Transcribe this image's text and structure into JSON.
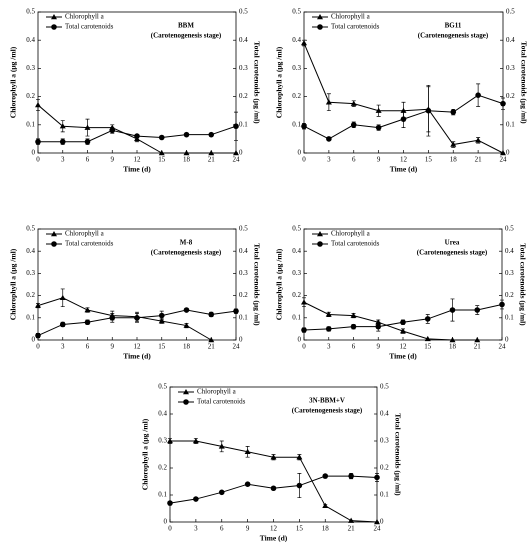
{
  "chart_data": [
    {
      "type": "line",
      "title": "BBM",
      "subtitle": "(Carotenogenesis stage)",
      "x_label": "Time (d)",
      "y_label": "Chlorophyll a  (μg /ml)",
      "y2_label": "Total carotenoids  (μg /ml)",
      "x": [
        0,
        3,
        6,
        9,
        12,
        15,
        18,
        21,
        24
      ],
      "xlim": [
        0,
        24
      ],
      "xticks": [
        0,
        3,
        6,
        9,
        12,
        15,
        18,
        21,
        24
      ],
      "ylim": [
        0,
        0.5
      ],
      "yticks": [
        0,
        0.1,
        0.2,
        0.3,
        0.4,
        0.5
      ],
      "y2lim": [
        0,
        0.5
      ],
      "y2ticks": [
        0,
        0.1,
        0.2,
        0.3,
        0.4,
        0.5
      ],
      "series": [
        {
          "name": "Chlorophyll a",
          "color": "#000000",
          "marker": "triangle",
          "values": [
            0.17,
            0.095,
            0.09,
            0.09,
            0.05,
            0.0,
            0.0,
            0.0,
            0.0
          ],
          "errors": [
            0.02,
            0.02,
            0.03,
            0.01,
            0.01,
            0.0,
            0.0,
            0.0,
            0.0
          ]
        },
        {
          "name": "Total carotenoids",
          "color": "#000000",
          "marker": "circle",
          "axis": "y2",
          "values": [
            0.04,
            0.04,
            0.04,
            0.08,
            0.06,
            0.055,
            0.065,
            0.065,
            0.095
          ],
          "errors": [
            0.01,
            0.01,
            0.01,
            0.01,
            0.005,
            0.005,
            0.005,
            0.005,
            0.05
          ]
        }
      ]
    },
    {
      "type": "line",
      "title": "BG11",
      "subtitle": "(Carotenogenesis stage)",
      "x_label": "Time (d)",
      "y_label": "Chlorophyll a  (μg /ml)",
      "y2_label": "Total carotenoids  (μg /ml)",
      "x": [
        0,
        3,
        6,
        9,
        12,
        15,
        18,
        21,
        24
      ],
      "xlim": [
        0,
        24
      ],
      "xticks": [
        0,
        3,
        6,
        9,
        12,
        15,
        18,
        21,
        24
      ],
      "ylim": [
        0,
        0.5
      ],
      "yticks": [
        0,
        0.1,
        0.2,
        0.3,
        0.4,
        0.5
      ],
      "y2lim": [
        0,
        0.5
      ],
      "y2ticks": [
        0,
        0.1,
        0.2,
        0.3,
        0.4,
        0.5
      ],
      "series": [
        {
          "name": "Chlorophyll a",
          "color": "#000000",
          "marker": "triangle",
          "values": [
            0.39,
            0.18,
            0.175,
            0.15,
            0.15,
            0.155,
            0.03,
            0.045,
            0.0
          ],
          "errors": [
            0.01,
            0.03,
            0.01,
            0.02,
            0.03,
            0.08,
            0.01,
            0.01,
            0.0
          ]
        },
        {
          "name": "Total carotenoids",
          "color": "#000000",
          "marker": "circle",
          "axis": "y2",
          "values": [
            0.095,
            0.05,
            0.1,
            0.09,
            0.12,
            0.15,
            0.145,
            0.205,
            0.175
          ],
          "errors": [
            0.01,
            0.005,
            0.01,
            0.01,
            0.03,
            0.09,
            0.01,
            0.04,
            0.02
          ]
        }
      ]
    },
    {
      "type": "line",
      "title": "M-8",
      "subtitle": "(Carotenogenesis stage)",
      "x_label": "Time (d)",
      "y_label": "Chlorophyll a  (μg /ml)",
      "y2_label": "Total carotenoids  (μg /ml)",
      "x": [
        0,
        3,
        6,
        9,
        12,
        15,
        18,
        21,
        24
      ],
      "xlim": [
        0,
        24
      ],
      "xticks": [
        0,
        3,
        6,
        9,
        12,
        15,
        18,
        21,
        24
      ],
      "ylim": [
        0,
        0.5
      ],
      "yticks": [
        0,
        0.1,
        0.2,
        0.3,
        0.4,
        0.5
      ],
      "y2lim": [
        0,
        0.5
      ],
      "y2ticks": [
        0,
        0.1,
        0.2,
        0.3,
        0.4,
        0.5
      ],
      "series": [
        {
          "name": "Chlorophyll a",
          "color": "#000000",
          "marker": "triangle",
          "values": [
            0.155,
            0.19,
            0.135,
            0.11,
            0.105,
            0.085,
            0.065,
            0.0,
            null
          ],
          "errors": [
            0.01,
            0.04,
            0.01,
            0.02,
            0.02,
            0.01,
            0.01,
            0.0,
            null
          ]
        },
        {
          "name": "Total carotenoids",
          "color": "#000000",
          "marker": "circle",
          "axis": "y2",
          "values": [
            0.02,
            0.07,
            0.08,
            0.1,
            0.1,
            0.11,
            0.135,
            0.115,
            0.13
          ],
          "errors": [
            0.01,
            0.01,
            0.01,
            0.02,
            0.02,
            0.02,
            0.005,
            0.01,
            0.01
          ]
        }
      ]
    },
    {
      "type": "line",
      "title": "Urea",
      "subtitle": "(Carotenogenesis stage)",
      "x_label": "Time (d)",
      "y_label": "Chlorophyll a  (μg /ml)",
      "y2_label": "Total carotenoids  (μg /ml)",
      "x": [
        0,
        3,
        6,
        9,
        12,
        15,
        18,
        21,
        24
      ],
      "xlim": [
        0,
        24
      ],
      "xticks": [
        0,
        3,
        6,
        9,
        12,
        15,
        18,
        21,
        24
      ],
      "ylim": [
        0,
        0.5
      ],
      "yticks": [
        0,
        0.1,
        0.2,
        0.3,
        0.4,
        0.5
      ],
      "y2lim": [
        0,
        0.5
      ],
      "y2ticks": [
        0,
        0.1,
        0.2,
        0.3,
        0.4,
        0.5
      ],
      "series": [
        {
          "name": "Chlorophyll a",
          "color": "#000000",
          "marker": "triangle",
          "values": [
            0.17,
            0.115,
            0.11,
            0.08,
            0.04,
            0.005,
            0.0,
            0.0,
            null
          ],
          "errors": [
            0.02,
            0.01,
            0.01,
            0.01,
            0.01,
            0.0,
            0.0,
            0.0,
            null
          ]
        },
        {
          "name": "Total carotenoids",
          "color": "#000000",
          "marker": "circle",
          "axis": "y2",
          "values": [
            0.045,
            0.05,
            0.06,
            0.06,
            0.08,
            0.095,
            0.135,
            0.135,
            0.16
          ],
          "errors": [
            0.01,
            0.01,
            0.01,
            0.02,
            0.01,
            0.02,
            0.05,
            0.02,
            0.02
          ]
        }
      ]
    },
    {
      "type": "line",
      "title": "3N-BBM+V",
      "subtitle": "(Carotenogenesis stage)",
      "x_label": "Time (d)",
      "y_label": "Chlorophyll a  (μg /ml)",
      "y2_label": "Total carotenoids  (μg /ml)",
      "x": [
        0,
        3,
        6,
        9,
        12,
        15,
        18,
        21,
        24
      ],
      "xlim": [
        0,
        24
      ],
      "xticks": [
        0,
        3,
        6,
        9,
        12,
        15,
        18,
        21,
        24
      ],
      "ylim": [
        0,
        0.5
      ],
      "yticks": [
        0,
        0.1,
        0.2,
        0.3,
        0.4,
        0.5
      ],
      "y2lim": [
        0,
        0.5
      ],
      "y2ticks": [
        0,
        0.1,
        0.2,
        0.3,
        0.4,
        0.5
      ],
      "series": [
        {
          "name": "Chlorophyll a",
          "color": "#000000",
          "marker": "triangle",
          "values": [
            0.3,
            0.3,
            0.28,
            0.26,
            0.24,
            0.24,
            0.06,
            0.005,
            0.0
          ],
          "errors": [
            0.01,
            0.01,
            0.02,
            0.02,
            0.01,
            0.01,
            0.005,
            0.0,
            0.0
          ]
        },
        {
          "name": "Total carotenoids",
          "color": "#000000",
          "marker": "circle",
          "axis": "y2",
          "values": [
            0.07,
            0.085,
            0.11,
            0.14,
            0.125,
            0.135,
            0.17,
            0.17,
            0.165
          ],
          "errors": [
            0.005,
            0.005,
            0.005,
            0.005,
            0.005,
            0.045,
            0.005,
            0.01,
            0.015
          ]
        }
      ]
    }
  ]
}
